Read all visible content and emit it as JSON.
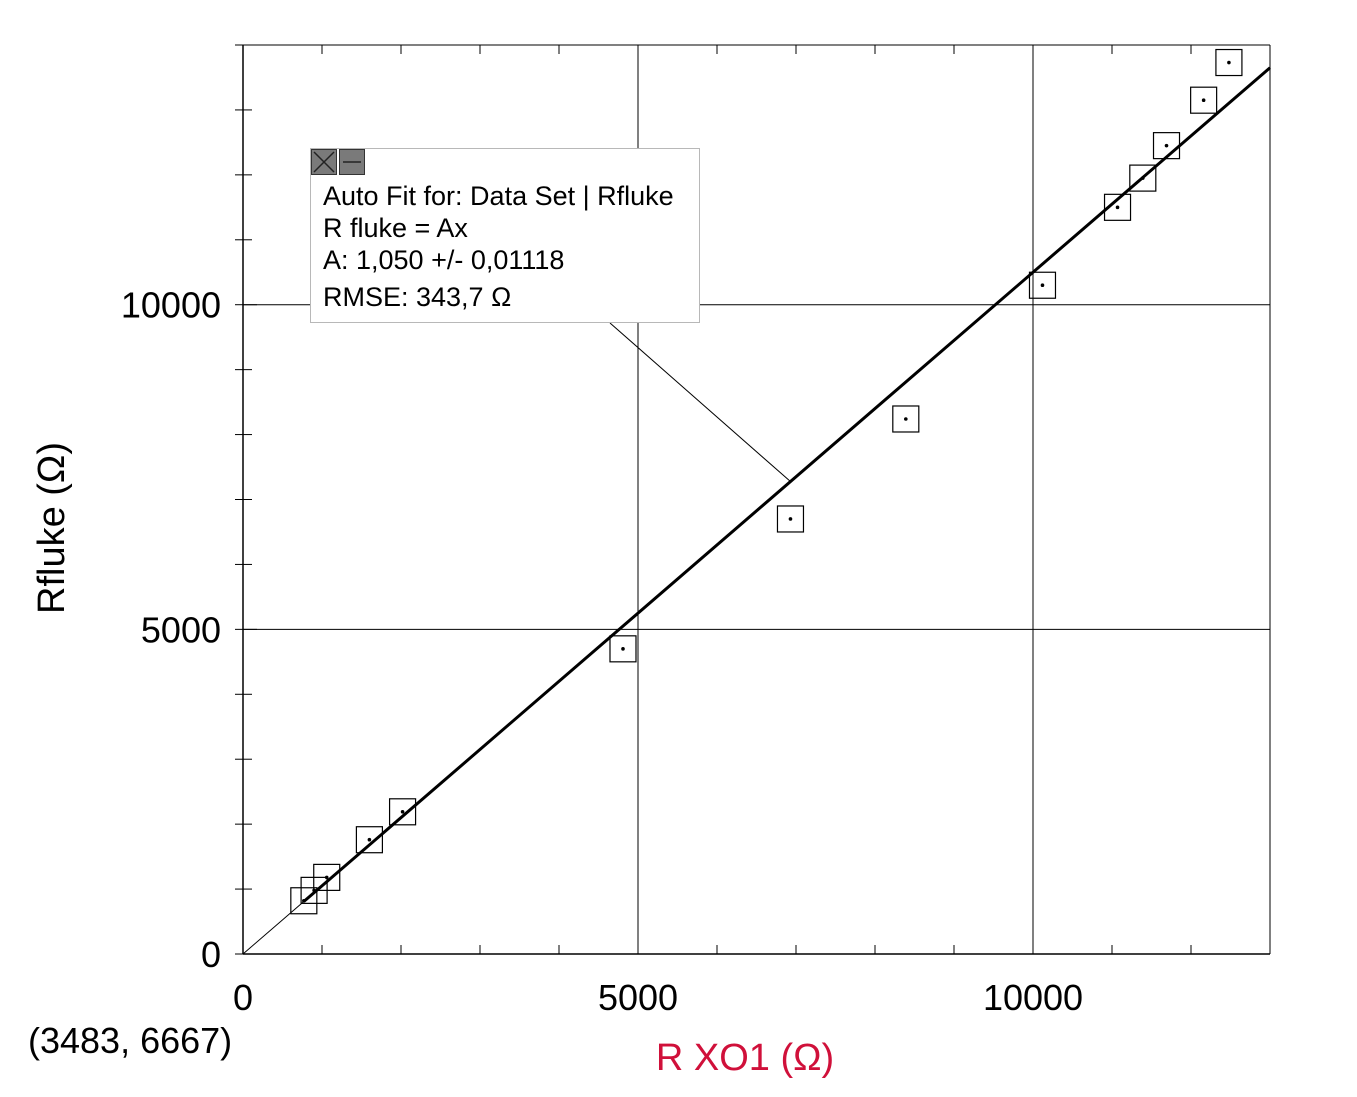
{
  "chart_data": {
    "type": "scatter",
    "xlabel": "R XO1 (Ω)",
    "ylabel": "Rfluke (Ω)",
    "xlim": [
      0,
      13000
    ],
    "ylim": [
      0,
      14000
    ],
    "x_ticks": [
      0,
      5000,
      10000
    ],
    "y_ticks": [
      0,
      5000,
      10000
    ],
    "x_minor_step": 1000,
    "y_minor_step": 1000,
    "grid": true,
    "points": [
      {
        "x": 770,
        "y": 820
      },
      {
        "x": 900,
        "y": 980
      },
      {
        "x": 1060,
        "y": 1180
      },
      {
        "x": 1600,
        "y": 1760
      },
      {
        "x": 2020,
        "y": 2190
      },
      {
        "x": 4810,
        "y": 4700
      },
      {
        "x": 6930,
        "y": 6700
      },
      {
        "x": 8390,
        "y": 8240
      },
      {
        "x": 10120,
        "y": 10300
      },
      {
        "x": 11070,
        "y": 11500
      },
      {
        "x": 11390,
        "y": 11950
      },
      {
        "x": 11690,
        "y": 12450
      },
      {
        "x": 12160,
        "y": 13150
      },
      {
        "x": 12480,
        "y": 13730
      }
    ],
    "fit": {
      "equation": "R fluke = Ax",
      "A": 1.05,
      "x_range": [
        770,
        13000
      ]
    },
    "colors": {
      "xlabel": "#d0103a",
      "ylabel": "#000000",
      "fit_line": "#000000",
      "grid": "#000000"
    }
  },
  "fit_box": {
    "title": "Auto Fit for: Data Set | Rfluke",
    "equation": "R fluke = Ax",
    "param": "A: 1,050 +/- 0,01118",
    "rmse": "RMSE: 343,7 Ω",
    "close_icon": "close-icon",
    "minimize_icon": "minimize-icon"
  },
  "coordinate_readout": "(3483, 6667)"
}
